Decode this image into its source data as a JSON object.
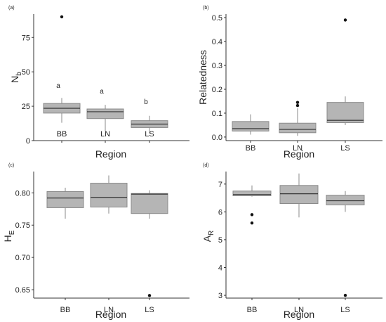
{
  "chart_data": [
    {
      "type": "box",
      "panel_label": "(a)",
      "xlabel": "Region",
      "ylabel": "N",
      "ylabel_sub": "b",
      "categories": [
        "BB",
        "LN",
        "LS"
      ],
      "ylim": [
        0,
        92
      ],
      "yticks": [
        "0",
        "25",
        "50",
        "75"
      ],
      "boxes": [
        {
          "category": "BB",
          "whisker_low": 13,
          "q1": 20,
          "median": 23.5,
          "q3": 27,
          "whisker_high": 31,
          "outliers": [
            90
          ]
        },
        {
          "category": "LN",
          "whisker_low": 7,
          "q1": 16,
          "median": 21,
          "q3": 23,
          "whisker_high": 26,
          "outliers": []
        },
        {
          "category": "LS",
          "whisker_low": 5,
          "q1": 9.5,
          "median": 12,
          "q3": 14.5,
          "whisker_high": 18,
          "outliers": []
        }
      ],
      "annotations": [
        "a",
        "a",
        "b"
      ]
    },
    {
      "type": "box",
      "panel_label": "(b)",
      "xlabel": "Region",
      "ylabel": "Relatedness",
      "ylabel_sub": "",
      "categories": [
        "BB",
        "LN",
        "LS"
      ],
      "ylim": [
        -0.015,
        0.515
      ],
      "yticks": [
        "0.0",
        "0.1",
        "0.2",
        "0.3",
        "0.4",
        "0.5"
      ],
      "boxes": [
        {
          "category": "BB",
          "whisker_low": 0.01,
          "q1": 0.025,
          "median": 0.035,
          "q3": 0.065,
          "whisker_high": 0.095,
          "outliers": []
        },
        {
          "category": "LN",
          "whisker_low": 0.005,
          "q1": 0.018,
          "median": 0.032,
          "q3": 0.058,
          "whisker_high": 0.12,
          "outliers": [
            0.132,
            0.145
          ]
        },
        {
          "category": "LS",
          "whisker_low": 0.05,
          "q1": 0.06,
          "median": 0.07,
          "q3": 0.145,
          "whisker_high": 0.17,
          "outliers": [
            0.49
          ]
        }
      ]
    },
    {
      "type": "box",
      "panel_label": "(c)",
      "xlabel": "Region",
      "ylabel": "H",
      "ylabel_sub": "E",
      "categories": [
        "BB",
        "LN",
        "LS"
      ],
      "ylim": [
        0.637,
        0.833
      ],
      "yticks": [
        "0.65",
        "0.70",
        "0.75",
        "0.80"
      ],
      "boxes": [
        {
          "category": "BB",
          "whisker_low": 0.76,
          "q1": 0.777,
          "median": 0.792,
          "q3": 0.802,
          "whisker_high": 0.808,
          "outliers": []
        },
        {
          "category": "LN",
          "whisker_low": 0.768,
          "q1": 0.778,
          "median": 0.793,
          "q3": 0.815,
          "whisker_high": 0.827,
          "outliers": []
        },
        {
          "category": "LS",
          "whisker_low": 0.76,
          "q1": 0.768,
          "median": 0.798,
          "q3": 0.799,
          "whisker_high": 0.804,
          "outliers": [
            0.641
          ]
        }
      ]
    },
    {
      "type": "box",
      "panel_label": "(d)",
      "xlabel": "Region",
      "ylabel": "A",
      "ylabel_sub": "R",
      "categories": [
        "BB",
        "LN",
        "LS"
      ],
      "ylim": [
        2.9,
        7.45
      ],
      "yticks": [
        "3",
        "4",
        "5",
        "6",
        "7"
      ],
      "boxes": [
        {
          "category": "BB",
          "whisker_low": 6.55,
          "q1": 6.58,
          "median": 6.62,
          "q3": 6.75,
          "whisker_high": 6.95,
          "outliers": [
            5.9,
            5.6
          ]
        },
        {
          "category": "LN",
          "whisker_low": 5.8,
          "q1": 6.3,
          "median": 6.65,
          "q3": 6.95,
          "whisker_high": 7.38,
          "outliers": []
        },
        {
          "category": "LS",
          "whisker_low": 6.0,
          "q1": 6.25,
          "median": 6.4,
          "q3": 6.6,
          "whisker_high": 6.75,
          "outliers": [
            3.0
          ]
        }
      ]
    }
  ]
}
